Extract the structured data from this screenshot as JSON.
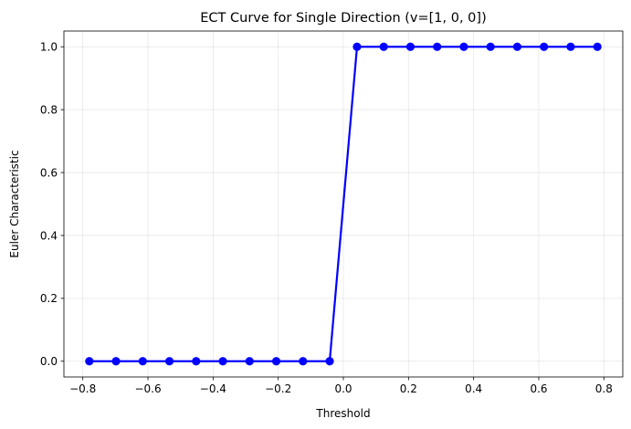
{
  "chart_data": {
    "type": "line",
    "title": "ECT Curve for Single Direction (v=[1, 0, 0])",
    "xlabel": "Threshold",
    "ylabel": "Euler Characteristic",
    "xlim": [
      -0.858,
      0.858
    ],
    "ylim": [
      -0.05,
      1.05
    ],
    "xticks": [
      -0.8,
      -0.6,
      -0.4,
      -0.2,
      0.0,
      0.2,
      0.4,
      0.6,
      0.8
    ],
    "xtick_labels": [
      "−0.8",
      "−0.6",
      "−0.4",
      "−0.2",
      "0.0",
      "0.2",
      "0.4",
      "0.6",
      "0.8"
    ],
    "yticks": [
      0.0,
      0.2,
      0.4,
      0.6,
      0.8,
      1.0
    ],
    "ytick_labels": [
      "0.0",
      "0.2",
      "0.4",
      "0.6",
      "0.8",
      "1.0"
    ],
    "grid": true,
    "series": [
      {
        "color": "#0000ff",
        "marker": "circle",
        "x": [
          -0.78,
          -0.698,
          -0.616,
          -0.534,
          -0.452,
          -0.37,
          -0.288,
          -0.206,
          -0.124,
          -0.042,
          0.042,
          0.124,
          0.206,
          0.288,
          0.37,
          0.452,
          0.534,
          0.616,
          0.698,
          0.78
        ],
        "y": [
          0,
          0,
          0,
          0,
          0,
          0,
          0,
          0,
          0,
          0,
          1,
          1,
          1,
          1,
          1,
          1,
          1,
          1,
          1,
          1
        ]
      }
    ]
  }
}
